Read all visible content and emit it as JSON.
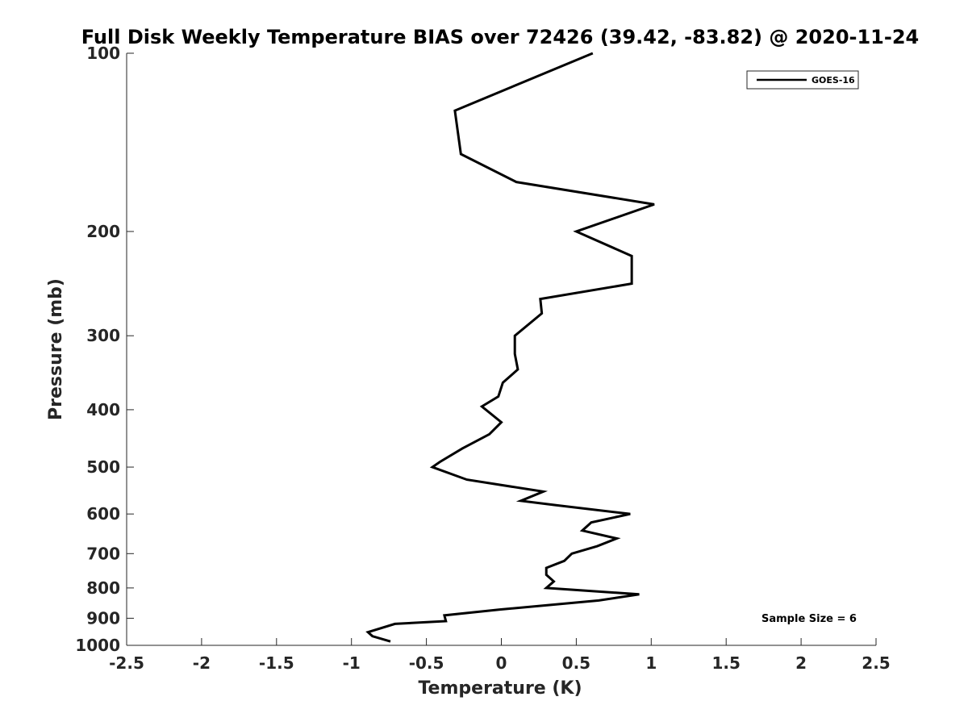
{
  "chart_data": {
    "type": "line",
    "title": "Full Disk Weekly Temperature BIAS over 72426 (39.42, -83.82) @ 2020-11-24",
    "xlabel": "Temperature (K)",
    "ylabel": "Pressure (mb)",
    "xlim": [
      -2.5,
      2.5
    ],
    "ylim": [
      100,
      1000
    ],
    "y_scale": "log",
    "y_reversed": true,
    "grid": false,
    "x_ticks": [
      "-2.5",
      "-2",
      "-1.5",
      "-1",
      "-0.5",
      "0",
      "0.5",
      "1",
      "1.5",
      "2",
      "2.5"
    ],
    "y_ticks": [
      "100",
      "200",
      "300",
      "400",
      "500",
      "600",
      "700",
      "800",
      "900",
      "1000"
    ],
    "legend_position": "top-right",
    "annotation": "Sample Size = 6",
    "line_color": "#000000",
    "series": [
      {
        "name": "GOES-16",
        "points": [
          {
            "x": 0.61,
            "y": 100
          },
          {
            "x": -0.31,
            "y": 125
          },
          {
            "x": -0.27,
            "y": 148
          },
          {
            "x": 0.1,
            "y": 165
          },
          {
            "x": 1.02,
            "y": 180
          },
          {
            "x": 0.5,
            "y": 200
          },
          {
            "x": 0.87,
            "y": 220
          },
          {
            "x": 0.87,
            "y": 245
          },
          {
            "x": 0.26,
            "y": 260
          },
          {
            "x": 0.27,
            "y": 275
          },
          {
            "x": 0.09,
            "y": 300
          },
          {
            "x": 0.09,
            "y": 322
          },
          {
            "x": 0.11,
            "y": 342
          },
          {
            "x": 0.01,
            "y": 360
          },
          {
            "x": -0.02,
            "y": 380
          },
          {
            "x": -0.13,
            "y": 395
          },
          {
            "x": 0.0,
            "y": 420
          },
          {
            "x": -0.08,
            "y": 440
          },
          {
            "x": -0.26,
            "y": 465
          },
          {
            "x": -0.41,
            "y": 490
          },
          {
            "x": -0.46,
            "y": 500
          },
          {
            "x": -0.23,
            "y": 525
          },
          {
            "x": 0.28,
            "y": 550
          },
          {
            "x": 0.13,
            "y": 570
          },
          {
            "x": 0.37,
            "y": 580
          },
          {
            "x": 0.86,
            "y": 600
          },
          {
            "x": 0.6,
            "y": 620
          },
          {
            "x": 0.54,
            "y": 640
          },
          {
            "x": 0.77,
            "y": 660
          },
          {
            "x": 0.64,
            "y": 680
          },
          {
            "x": 0.47,
            "y": 700
          },
          {
            "x": 0.42,
            "y": 720
          },
          {
            "x": 0.3,
            "y": 740
          },
          {
            "x": 0.3,
            "y": 760
          },
          {
            "x": 0.35,
            "y": 780
          },
          {
            "x": 0.3,
            "y": 800
          },
          {
            "x": 0.92,
            "y": 820
          },
          {
            "x": 0.65,
            "y": 840
          },
          {
            "x": -0.01,
            "y": 870
          },
          {
            "x": -0.38,
            "y": 890
          },
          {
            "x": -0.37,
            "y": 910
          },
          {
            "x": -0.71,
            "y": 920
          },
          {
            "x": -0.89,
            "y": 950
          },
          {
            "x": -0.86,
            "y": 965
          },
          {
            "x": -0.74,
            "y": 985
          }
        ]
      }
    ]
  }
}
